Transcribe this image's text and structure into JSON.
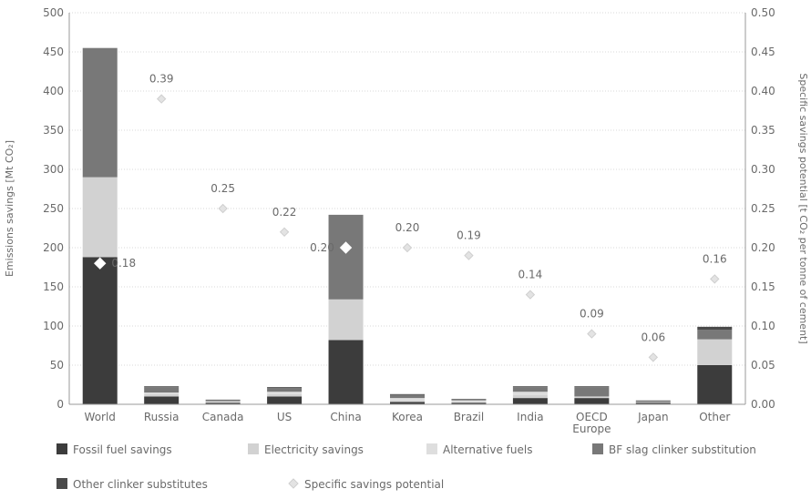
{
  "chart_data": {
    "type": "bar",
    "stacked": true,
    "categories": [
      "World",
      "Russia",
      "Canada",
      "US",
      "China",
      "Korea",
      "Brazil",
      "India",
      "OECD\nEurope",
      "Japan",
      "Other"
    ],
    "series": [
      {
        "name": "Fossil fuel savings",
        "color": "#3c3c3c",
        "values": [
          188,
          10,
          2,
          10,
          82,
          3,
          2,
          8,
          8,
          2,
          50
        ]
      },
      {
        "name": "Electricity savings",
        "color": "#d2d2d2",
        "values": [
          102,
          3,
          1,
          3,
          52,
          2,
          1,
          4,
          2,
          1,
          33
        ]
      },
      {
        "name": "Alternative fuels",
        "color": "#dedede",
        "values": [
          0,
          2,
          1,
          3,
          0,
          3,
          2,
          4,
          0,
          0,
          0
        ]
      },
      {
        "name": "BF slag clinker substitution",
        "color": "#787878",
        "values": [
          165,
          7,
          2,
          5,
          108,
          4,
          2,
          6,
          12,
          2,
          12
        ]
      },
      {
        "name": "Other clinker substitutes",
        "color": "#4a4a4a",
        "values": [
          0,
          1,
          0,
          1,
          0,
          1,
          0,
          1,
          1,
          0,
          4
        ]
      }
    ],
    "line_series": {
      "name": "Specific savings potential",
      "axis": "right",
      "values": [
        0.18,
        0.39,
        0.25,
        0.22,
        0.2,
        0.2,
        0.19,
        0.14,
        0.09,
        0.06,
        0.16
      ],
      "labels": [
        "0.18",
        "0.39",
        "0.25",
        "0.22",
        "0.20",
        "0.20",
        "0.19",
        "0.14",
        "0.09",
        "0.06",
        "0.16"
      ]
    },
    "ylabel": "Emissions savings [Mt CO₂]",
    "y2label": "Specific savings potential [t CO₂ per tonne of cement]",
    "ylim": [
      0,
      500
    ],
    "y2lim": [
      0,
      0.5
    ],
    "yticks": [
      0,
      50,
      100,
      150,
      200,
      250,
      300,
      350,
      400,
      450,
      500
    ],
    "y2ticks": [
      "0.00",
      "0.05",
      "0.10",
      "0.15",
      "0.20",
      "0.25",
      "0.30",
      "0.35",
      "0.40",
      "0.45",
      "0.50"
    ],
    "grid": true,
    "legend": "bottom"
  }
}
